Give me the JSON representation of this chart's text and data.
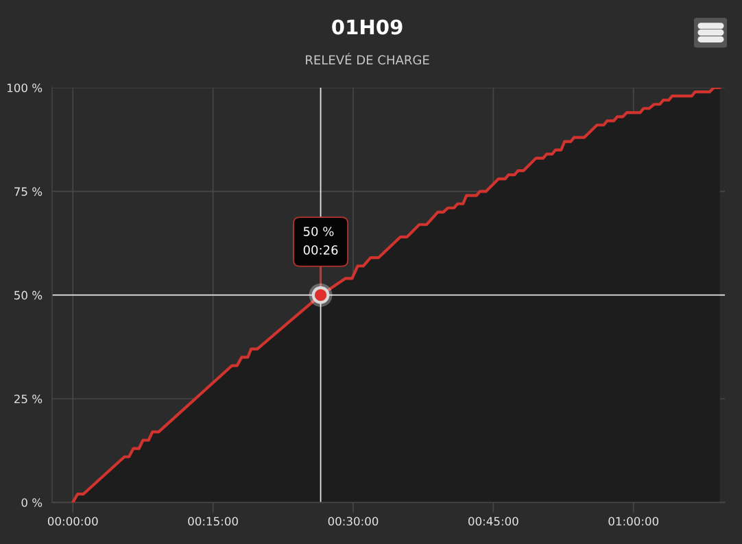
{
  "chart_data": {
    "type": "area",
    "title": "01H09",
    "subtitle": "RELEVÉ DE CHARGE",
    "x": [
      0,
      0.0083,
      0.0186,
      0.092,
      0.1,
      0.108,
      0.118,
      0.125,
      0.135,
      0.142,
      0.153,
      0.284,
      0.293,
      0.301,
      0.312,
      0.318,
      0.329,
      0.442,
      0.486,
      0.498,
      0.508,
      0.518,
      0.531,
      0.545,
      0.584,
      0.596,
      0.618,
      0.631,
      0.651,
      0.661,
      0.669,
      0.68,
      0.686,
      0.696,
      0.702,
      0.72,
      0.726,
      0.737,
      0.759,
      0.771,
      0.777,
      0.788,
      0.794,
      0.804,
      0.826,
      0.839,
      0.845,
      0.855,
      0.861,
      0.871,
      0.877,
      0.888,
      0.894,
      0.912,
      0.935,
      0.947,
      0.953,
      0.965,
      0.971,
      0.981,
      0.988,
      1.012,
      1.018,
      1.028,
      1.037,
      1.047,
      1.053,
      1.063,
      1.069,
      1.104,
      1.11,
      1.136,
      1.143,
      1.154
    ],
    "series": [
      {
        "color": "#d1342f",
        "values": [
          0,
          2,
          2,
          11,
          11,
          13,
          13,
          15,
          15,
          17,
          17,
          33,
          33,
          35,
          35,
          37,
          37,
          50,
          54,
          54,
          57,
          57,
          59,
          59,
          64,
          64,
          67,
          67,
          70,
          70,
          71,
          71,
          72,
          72,
          74,
          74,
          75,
          75,
          78,
          78,
          79,
          79,
          80,
          80,
          83,
          83,
          84,
          84,
          85,
          85,
          87,
          87,
          88,
          88,
          91,
          91,
          92,
          92,
          93,
          93,
          94,
          94,
          95,
          95,
          96,
          96,
          97,
          97,
          98,
          98,
          99,
          99,
          100,
          100
        ]
      },
      {
        "type": "scatter",
        "color": "#e0302c",
        "marker": "circle",
        "x": [
          0.442
        ],
        "values": [
          50
        ]
      }
    ],
    "xlim": [
      -0.037,
      1.163
    ],
    "ylim": [
      0,
      100
    ],
    "xticks": [
      {
        "value": 0,
        "label": "00:00:00"
      },
      {
        "value": 0.25,
        "label": "00:15:00"
      },
      {
        "value": 0.5,
        "label": "00:30:00"
      },
      {
        "value": 0.75,
        "label": "00:45:00"
      },
      {
        "value": 1.0,
        "label": "01:00:00"
      }
    ],
    "yticks": [
      {
        "value": 0,
        "label": "0 %"
      },
      {
        "value": 25,
        "label": "25 %"
      },
      {
        "value": 50,
        "label": "50 %"
      },
      {
        "value": 75,
        "label": "75 %"
      },
      {
        "value": 100,
        "label": "100 %"
      }
    ],
    "ref_lines": [
      {
        "axis": "x",
        "value": 0.442,
        "color": "#e6e6e6"
      },
      {
        "axis": "y",
        "value": 50,
        "color": "#e6e6e6"
      }
    ],
    "annotations": [
      {
        "text": "50 %\n00:26",
        "x": 0.442,
        "y": 50
      }
    ],
    "grid": true
  }
}
